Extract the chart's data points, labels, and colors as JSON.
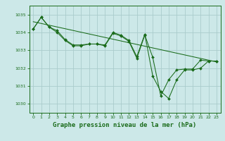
{
  "background_color": "#cce8e8",
  "grid_color": "#aacccc",
  "line_color": "#1a6b1a",
  "marker_color": "#1a6b1a",
  "xlabel": "Graphe pression niveau de la mer (hPa)",
  "xlabel_fontsize": 6.5,
  "xlim": [
    -0.5,
    23.5
  ],
  "ylim": [
    1029.5,
    1035.5
  ],
  "yticks": [
    1030,
    1031,
    1032,
    1033,
    1034,
    1035
  ],
  "xticks": [
    0,
    1,
    2,
    3,
    4,
    5,
    6,
    7,
    8,
    9,
    10,
    11,
    12,
    13,
    14,
    15,
    16,
    17,
    18,
    19,
    20,
    21,
    22,
    23
  ],
  "series": [
    {
      "x": [
        0,
        1,
        2,
        3,
        4,
        5,
        6,
        7,
        8,
        9,
        10,
        11,
        12,
        13,
        14,
        15,
        16,
        17,
        18,
        19,
        20,
        21,
        22,
        23
      ],
      "y": [
        1034.2,
        1034.85,
        1034.3,
        1034.1,
        1033.6,
        1033.3,
        1033.3,
        1033.35,
        1033.35,
        1033.3,
        1034.0,
        1033.85,
        1033.55,
        1032.65,
        1033.9,
        1031.55,
        1030.7,
        1030.3,
        1031.35,
        1031.9,
        1031.9,
        1032.0,
        1032.4,
        1032.4
      ]
    },
    {
      "x": [
        0,
        1,
        2,
        3,
        4,
        5,
        6,
        7,
        8,
        9,
        10,
        11,
        12,
        13,
        14,
        15,
        16,
        17,
        18,
        19,
        20,
        21,
        22,
        23
      ],
      "y": [
        1034.2,
        1034.85,
        1034.3,
        1034.0,
        1033.55,
        1033.25,
        1033.25,
        1033.35,
        1033.35,
        1033.25,
        1033.95,
        1033.8,
        1033.5,
        1032.55,
        1033.85,
        1032.6,
        1030.45,
        1031.35,
        1031.9,
        1031.95,
        1031.95,
        1032.45,
        1032.4,
        1032.4
      ]
    },
    {
      "x": [
        0,
        23
      ],
      "y": [
        1034.6,
        1032.35
      ]
    }
  ]
}
